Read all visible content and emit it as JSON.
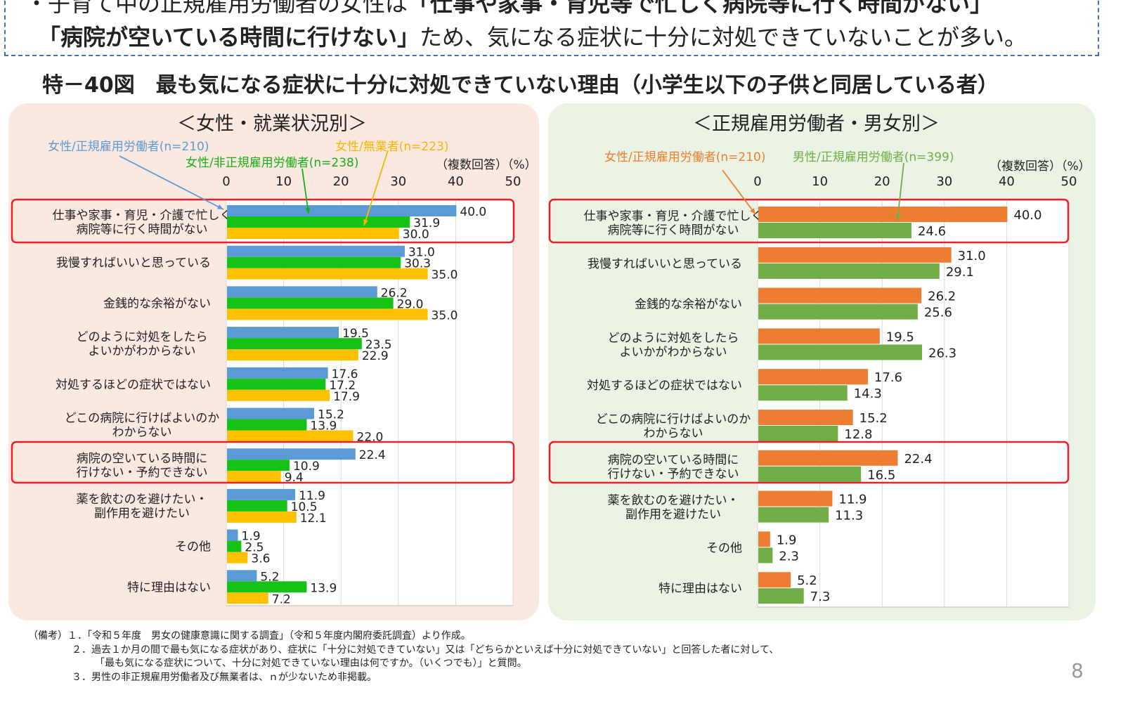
{
  "summary": {
    "line1_prefix": "・子育て中の正規雇用労働者の女性は",
    "line1_bold": "「仕事や家事・育児等で忙しく病院等に行く時間がない」",
    "line2_bold": "「病院が空いている時間に行けない」",
    "line2_rest": "ため、気になる症状に十分に対処できていないことが多い。"
  },
  "figure_title": "特－40図　最も気になる症状に十分に対処できていない理由（小学生以下の子供と同居している者）",
  "chart_data": [
    {
      "type": "bar",
      "orientation": "horizontal",
      "title": "＜女性・就業状況別＞",
      "unit_label": "（複数回答）（%）",
      "xlim": [
        0,
        50
      ],
      "ticks": [
        "0",
        "10",
        "20",
        "30",
        "40",
        "50"
      ],
      "grid": true,
      "categories": [
        "仕事や家事・育児・介護で忙しく\n病院等に行く時間がない",
        "我慢すればいいと思っている",
        "金銭的な余裕がない",
        "どのように対処をしたら\nよいかがわからない",
        "対処するほどの症状ではない",
        "どこの病院に行けばよいのか\nわからない",
        "病院の空いている時間に\n行けない・予約できない",
        "薬を飲むのを避けたい・\n副作用を避けたい",
        "その他",
        "特に理由はない"
      ],
      "series": [
        {
          "name": "女性/正規雇用労働者(n=210)",
          "color": "#5b9bd5",
          "values": [
            40.0,
            31.0,
            26.2,
            19.5,
            17.6,
            15.2,
            22.4,
            11.9,
            1.9,
            5.2
          ]
        },
        {
          "name": "女性/非正規雇用労働者(n=238)",
          "color": "#16c216",
          "values": [
            31.9,
            30.3,
            29.0,
            23.5,
            17.2,
            13.9,
            10.9,
            10.5,
            2.5,
            13.9
          ]
        },
        {
          "name": "女性/無業者(n=223)",
          "color": "#ffc000",
          "values": [
            30.0,
            35.0,
            35.0,
            22.9,
            17.9,
            22.0,
            9.4,
            12.1,
            3.6,
            7.2
          ]
        }
      ],
      "highlighted_categories": [
        0,
        6
      ]
    },
    {
      "type": "bar",
      "orientation": "horizontal",
      "title": "＜正規雇用労働者・男女別＞",
      "unit_label": "（複数回答）（%）",
      "xlim": [
        0,
        50
      ],
      "ticks": [
        "0",
        "10",
        "20",
        "30",
        "40",
        "50"
      ],
      "grid": true,
      "categories": [
        "仕事や家事・育児・介護で忙しく\n病院等に行く時間がない",
        "我慢すればいいと思っている",
        "金銭的な余裕がない",
        "どのように対処をしたら\nよいかがわからない",
        "対処するほどの症状ではない",
        "どこの病院に行けばよいのか\nわからない",
        "病院の空いている時間に\n行けない・予約できない",
        "薬を飲むのを避けたい・\n副作用を避けたい",
        "その他",
        "特に理由はない"
      ],
      "series": [
        {
          "name": "女性/正規雇用労働者(n=210)",
          "color": "#ed7d31",
          "values": [
            40.0,
            31.0,
            26.2,
            19.5,
            17.6,
            15.2,
            22.4,
            11.9,
            1.9,
            5.2
          ]
        },
        {
          "name": "男性/正規雇用労働者(n=399)",
          "color": "#70ad47",
          "values": [
            24.6,
            29.1,
            25.6,
            26.3,
            14.3,
            12.8,
            16.5,
            11.3,
            2.3,
            7.3
          ]
        }
      ],
      "highlighted_categories": [
        0,
        6
      ]
    }
  ],
  "notes": [
    "（備考）１．「令和５年度　男女の健康意識に関する調査」（令和５年度内閣府委託調査）より作成。",
    "２．過去１か月の間で最も気になる症状があり、症状に「十分に対処できていない」又は「どちらかといえば十分に対処できていない」と回答した者に対して、",
    "「最も気になる症状について、十分に対処できていない理由は何ですか。（いくつでも）」と質問。",
    "３．男性の非正規雇用労働者及び無業者は、ｎが少ないため非掲載。"
  ],
  "page_number": "8"
}
